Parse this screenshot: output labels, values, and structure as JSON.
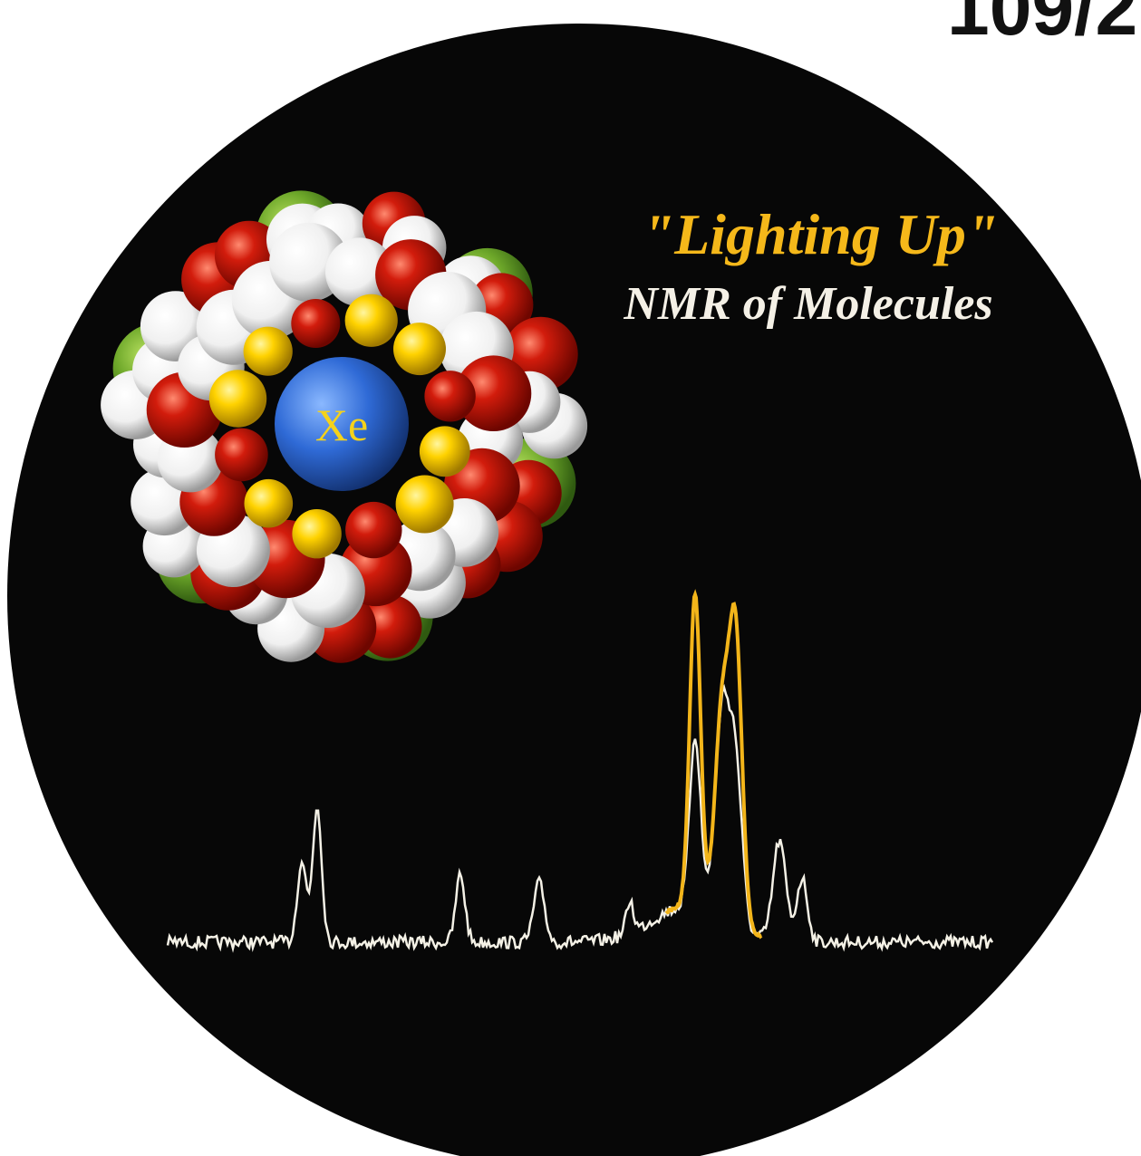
{
  "issue": "109/2",
  "title": "\"Lighting Up\"",
  "subtitle": "NMR of Molecules",
  "atom_label": "Xe"
}
